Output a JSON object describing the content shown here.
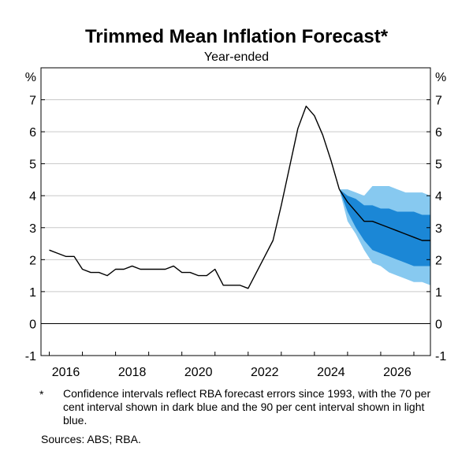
{
  "chart_data": {
    "type": "line",
    "title": "Trimmed Mean Inflation Forecast*",
    "subtitle": "Year-ended",
    "y_unit": "%",
    "ylim": [
      -1,
      8
    ],
    "yticks": [
      -1,
      0,
      1,
      2,
      3,
      4,
      5,
      6,
      7
    ],
    "xlim": [
      2014.75,
      2026.5
    ],
    "xticks": [
      2016,
      2018,
      2020,
      2022,
      2024,
      2026
    ],
    "grid": true,
    "series": [
      {
        "role": "actual",
        "color": "#000000",
        "x": [
          2015.0,
          2015.25,
          2015.5,
          2015.75,
          2016.0,
          2016.25,
          2016.5,
          2016.75,
          2017.0,
          2017.25,
          2017.5,
          2017.75,
          2018.0,
          2018.25,
          2018.5,
          2018.75,
          2019.0,
          2019.25,
          2019.5,
          2019.75,
          2020.0,
          2020.25,
          2020.5,
          2020.75,
          2021.0,
          2021.25,
          2021.5,
          2021.75,
          2022.0,
          2022.25,
          2022.5,
          2022.75,
          2023.0,
          2023.25,
          2023.5,
          2023.75
        ],
        "values": [
          2.3,
          2.2,
          2.1,
          2.1,
          1.7,
          1.6,
          1.6,
          1.5,
          1.7,
          1.7,
          1.8,
          1.7,
          1.7,
          1.7,
          1.7,
          1.8,
          1.6,
          1.6,
          1.5,
          1.5,
          1.7,
          1.2,
          1.2,
          1.2,
          1.1,
          1.6,
          2.1,
          2.6,
          3.7,
          4.9,
          6.1,
          6.8,
          6.5,
          5.9,
          5.1,
          4.2
        ]
      },
      {
        "role": "forecast",
        "color": "#000000",
        "x": [
          2023.75,
          2024.0,
          2024.25,
          2024.5,
          2024.75,
          2025.0,
          2025.25,
          2025.5,
          2025.75,
          2026.0,
          2026.25,
          2026.5
        ],
        "values": [
          4.2,
          3.8,
          3.5,
          3.2,
          3.2,
          3.1,
          3.0,
          2.9,
          2.8,
          2.7,
          2.6,
          2.6
        ]
      }
    ],
    "bands": [
      {
        "interval": "90 per cent",
        "color": "#87c9f0",
        "x": [
          2023.75,
          2024.0,
          2024.25,
          2024.5,
          2024.75,
          2025.0,
          2025.25,
          2025.5,
          2025.75,
          2026.0,
          2026.25,
          2026.5
        ],
        "lower": [
          4.2,
          3.2,
          2.8,
          2.3,
          1.9,
          1.8,
          1.6,
          1.5,
          1.4,
          1.3,
          1.3,
          1.2
        ],
        "upper": [
          4.2,
          4.2,
          4.1,
          4.0,
          4.3,
          4.3,
          4.3,
          4.2,
          4.1,
          4.1,
          4.1,
          4.0
        ]
      },
      {
        "interval": "70 per cent",
        "color": "#1b87d6",
        "x": [
          2023.75,
          2024.0,
          2024.25,
          2024.5,
          2024.75,
          2025.0,
          2025.25,
          2025.5,
          2025.75,
          2026.0,
          2026.25,
          2026.5
        ],
        "lower": [
          4.2,
          3.5,
          3.0,
          2.6,
          2.3,
          2.2,
          2.1,
          2.0,
          1.9,
          1.8,
          1.8,
          1.8
        ],
        "upper": [
          4.2,
          4.0,
          3.9,
          3.7,
          3.7,
          3.6,
          3.6,
          3.5,
          3.5,
          3.5,
          3.4,
          3.4
        ]
      }
    ]
  },
  "footnote": {
    "marker": "*",
    "text": "Confidence intervals reflect RBA forecast errors since 1993, with the 70 per cent interval shown in dark blue and the 90 per cent interval shown in light blue."
  },
  "sources": "Sources: ABS; RBA."
}
